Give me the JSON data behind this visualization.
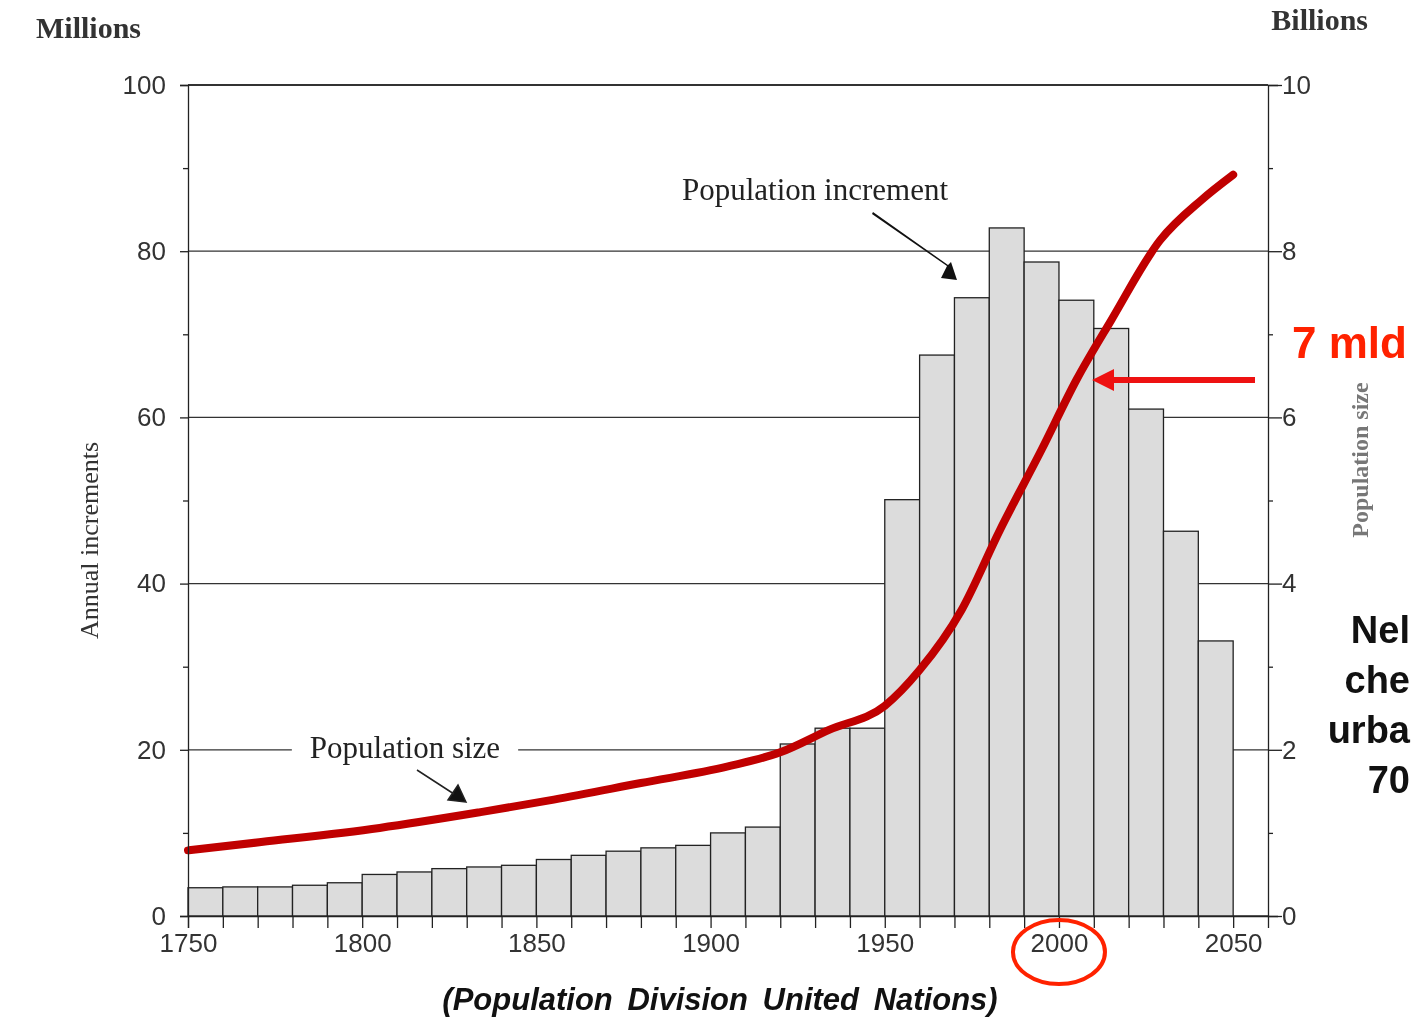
{
  "chart_data": {
    "type": "histogram",
    "ylabel": "Annual increments",
    "y2label": "Population size",
    "bins": [
      1750,
      1760,
      1770,
      1780,
      1790,
      1800,
      1810,
      1820,
      1830,
      1840,
      1850,
      1860,
      1870,
      1880,
      1890,
      1900,
      1910,
      1920,
      1930,
      1940,
      1950,
      1960,
      1970,
      1980,
      1990,
      2000,
      2010,
      2020,
      2030,
      2040,
      2050
    ],
    "xlim": [
      1750,
      2060
    ],
    "xticks": [
      1750,
      {
        "value": 1760,
        "label": null
      },
      {
        "value": 1770,
        "label": null
      },
      {
        "value": 1780,
        "label": null
      },
      {
        "value": 1790,
        "label": null
      },
      1800,
      {
        "value": 1810,
        "label": null
      },
      {
        "value": 1820,
        "label": null
      },
      {
        "value": 1830,
        "label": null
      },
      {
        "value": 1840,
        "label": null
      },
      1850,
      {
        "value": 1860,
        "label": null
      },
      {
        "value": 1870,
        "label": null
      },
      {
        "value": 1880,
        "label": null
      },
      {
        "value": 1890,
        "label": null
      },
      1900,
      {
        "value": 1910,
        "label": null
      },
      {
        "value": 1920,
        "label": null
      },
      {
        "value": 1930,
        "label": null
      },
      {
        "value": 1940,
        "label": null
      },
      1950,
      {
        "value": 1960,
        "label": null
      },
      {
        "value": 1970,
        "label": null
      },
      {
        "value": 1980,
        "label": null
      },
      {
        "value": 1990,
        "label": null
      },
      2000,
      {
        "value": 2010,
        "label": null
      },
      {
        "value": 2020,
        "label": null
      },
      {
        "value": 2030,
        "label": null
      },
      {
        "value": 2040,
        "label": null
      },
      2050
    ],
    "ylim": [
      0,
      100
    ],
    "yticks": [
      0,
      {
        "value": 10,
        "label": null
      },
      20,
      {
        "value": 30,
        "label": null
      },
      40,
      {
        "value": 50,
        "label": null
      },
      60,
      {
        "value": 70,
        "label": null
      },
      80,
      {
        "value": 90,
        "label": null
      },
      100
    ],
    "y2lim": [
      0,
      10
    ],
    "y2ticks": [
      0,
      {
        "value": 1,
        "label": null
      },
      2,
      {
        "value": 3,
        "label": null
      },
      4,
      {
        "value": 5,
        "label": null
      },
      6,
      {
        "value": 7,
        "label": null
      },
      8,
      {
        "value": 9,
        "label": null
      },
      10
    ],
    "grid": "y",
    "series": [
      {
        "color": "#dcdcdc",
        "values": [
          3.4,
          3.5,
          3.5,
          3.7,
          4.0,
          5.0,
          5.3,
          5.7,
          5.9,
          6.1,
          6.8,
          7.3,
          7.8,
          8.2,
          8.5,
          10.0,
          10.7,
          20.7,
          22.6,
          22.6,
          50.1,
          67.5,
          74.4,
          82.8,
          78.7,
          74.1,
          70.7,
          61.0,
          46.3,
          33.1
        ]
      },
      {
        "type": "line",
        "axis": "y2",
        "color": "#c00000",
        "x": [
          1750,
          1771,
          1805,
          1834,
          1855,
          1880,
          1905,
          1920,
          1934,
          1950,
          1960,
          1972,
          1983,
          1995,
          2005,
          2015,
          2029,
          2041,
          2050
        ],
        "values": [
          0.79,
          0.89,
          1.06,
          1.25,
          1.4,
          1.6,
          1.8,
          1.97,
          2.24,
          2.53,
          2.96,
          3.68,
          4.64,
          5.61,
          6.45,
          7.17,
          8.13,
          8.62,
          8.92
        ]
      }
    ],
    "annotations": [
      "Population increment",
      "Population size",
      "7 mld",
      "Millions",
      "Billions",
      "(Population Division United Nations)",
      "Nel che urba 70"
    ]
  }
}
